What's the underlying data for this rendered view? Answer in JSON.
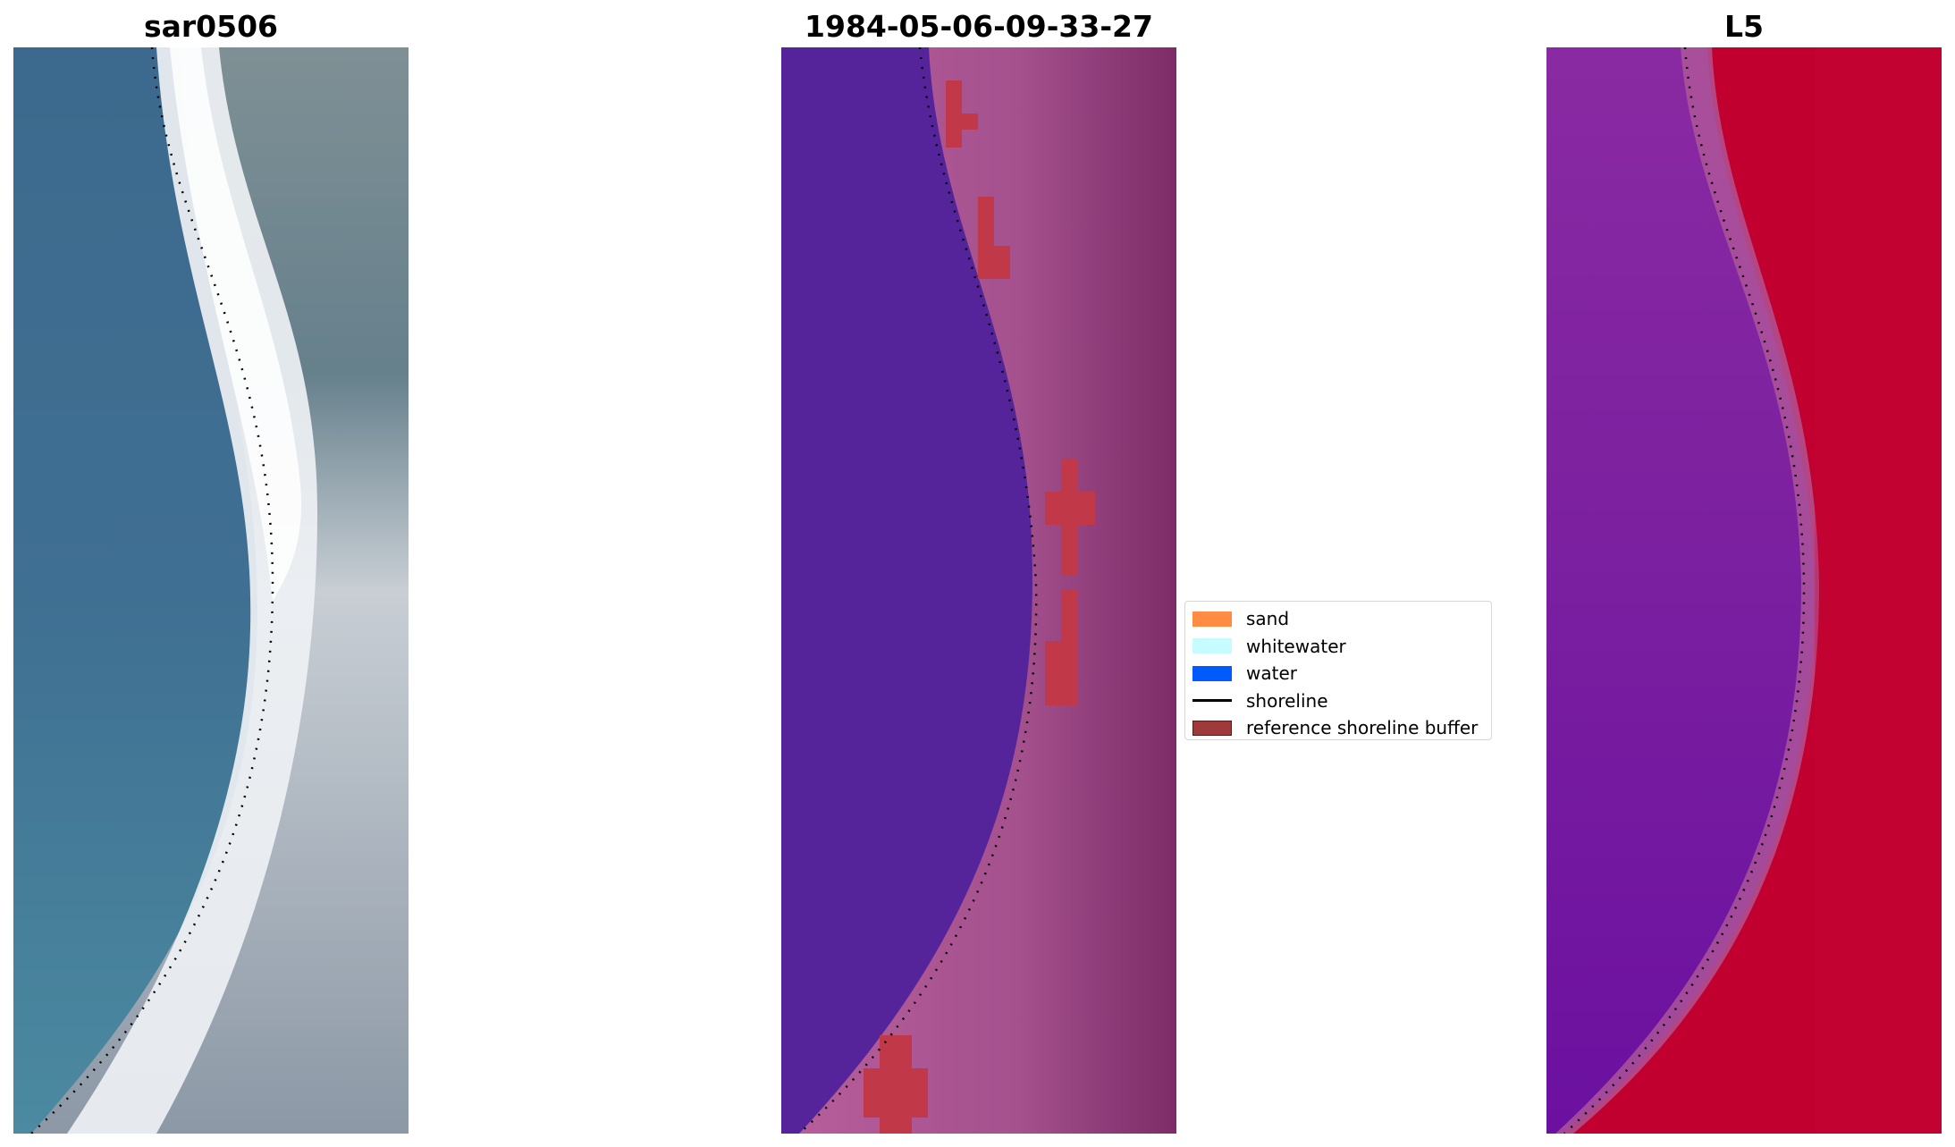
{
  "panels": [
    {
      "title": "sar0506"
    },
    {
      "title": "1984-05-06-09-33-27"
    },
    {
      "title": "L5"
    }
  ],
  "legend": {
    "items": [
      {
        "label": "sand",
        "kind": "patch",
        "color": "#ff8c42"
      },
      {
        "label": "whitewater",
        "kind": "patch",
        "color": "#c6fcff"
      },
      {
        "label": "water",
        "kind": "patch",
        "color": "#005bff"
      },
      {
        "label": "shoreline",
        "kind": "line",
        "color": "#000000"
      },
      {
        "label": "reference shoreline buffer",
        "kind": "patch",
        "color": "#a03a3a"
      }
    ]
  },
  "colors": {
    "rgb_water": "#3f6d8c",
    "rgb_whitewater": "#f2f4f7",
    "rgb_land": "#8a99a6",
    "classified_water": "#55249a",
    "classified_sand": "#b65b9b",
    "classified_land_dark": "#7d2c68",
    "reference_buffer": "#c13848",
    "index_low": "#7a1fa0",
    "index_high": "#c2002f"
  }
}
